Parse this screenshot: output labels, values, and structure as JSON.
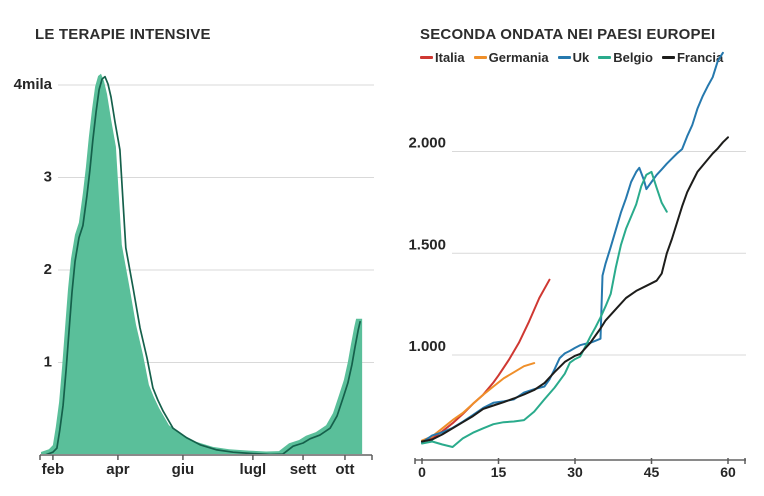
{
  "palette": {
    "background": "#ffffff",
    "title_text": "#2d2d2d",
    "tick_text": "#262626",
    "gridline": "#d9d9d9",
    "axis_line": "#8a8a8a",
    "tick_mark": "#5a5a5a"
  },
  "chart_data": [
    {
      "id": "terapie-intensive",
      "type": "area",
      "title": "LE TERAPIE INTENSIVE",
      "fill_color": "#5abf9a",
      "line_color": "#15604b",
      "ylim": [
        0,
        4400
      ],
      "y_ticks": [
        {
          "value": 4000,
          "label": "4mila"
        },
        {
          "value": 3000,
          "label": "3"
        },
        {
          "value": 2000,
          "label": "2"
        },
        {
          "value": 1000,
          "label": "1"
        }
      ],
      "x_ticks": [
        {
          "pos": 0.027,
          "label": "feb"
        },
        {
          "pos": 0.224,
          "label": "apr"
        },
        {
          "pos": 0.421,
          "label": "giu"
        },
        {
          "pos": 0.633,
          "label": "lugl"
        },
        {
          "pos": 0.785,
          "label": "sett"
        },
        {
          "pos": 0.912,
          "label": "ott"
        }
      ],
      "points": [
        [
          0.003,
          0
        ],
        [
          0.027,
          30
        ],
        [
          0.039,
          75
        ],
        [
          0.048,
          270
        ],
        [
          0.058,
          540
        ],
        [
          0.067,
          920
        ],
        [
          0.076,
          1350
        ],
        [
          0.085,
          1760
        ],
        [
          0.094,
          2090
        ],
        [
          0.106,
          2350
        ],
        [
          0.118,
          2480
        ],
        [
          0.13,
          2800
        ],
        [
          0.139,
          3080
        ],
        [
          0.148,
          3400
        ],
        [
          0.158,
          3710
        ],
        [
          0.167,
          3950
        ],
        [
          0.176,
          4065
        ],
        [
          0.185,
          4090
        ],
        [
          0.194,
          4010
        ],
        [
          0.203,
          3870
        ],
        [
          0.215,
          3600
        ],
        [
          0.23,
          3300
        ],
        [
          0.239,
          2760
        ],
        [
          0.248,
          2240
        ],
        [
          0.27,
          1805
        ],
        [
          0.291,
          1375
        ],
        [
          0.312,
          1050
        ],
        [
          0.33,
          725
        ],
        [
          0.345,
          595
        ],
        [
          0.361,
          475
        ],
        [
          0.391,
          290
        ],
        [
          0.433,
          185
        ],
        [
          0.473,
          110
        ],
        [
          0.524,
          55
        ],
        [
          0.573,
          30
        ],
        [
          0.633,
          15
        ],
        [
          0.685,
          5
        ],
        [
          0.724,
          10
        ],
        [
          0.755,
          95
        ],
        [
          0.785,
          130
        ],
        [
          0.806,
          175
        ],
        [
          0.836,
          215
        ],
        [
          0.867,
          290
        ],
        [
          0.888,
          420
        ],
        [
          0.906,
          615
        ],
        [
          0.921,
          780
        ],
        [
          0.933,
          975
        ],
        [
          0.942,
          1160
        ],
        [
          0.952,
          1350
        ],
        [
          0.958,
          1440
        ]
      ]
    },
    {
      "id": "seconda-ondata",
      "type": "line",
      "title": "SECONDA ONDATA NEI PAESI EUROPEI",
      "xlim": [
        0,
        60
      ],
      "x_ticks": [
        0,
        15,
        30,
        45,
        60
      ],
      "y_ticks": [
        {
          "value": 2000,
          "label": "2.000"
        },
        {
          "value": 1500,
          "label": "1.500"
        },
        {
          "value": 1000,
          "label": "1.000"
        }
      ],
      "series": [
        {
          "name": "Italia",
          "color": "#cf3832",
          "points": [
            [
              0,
              575
            ],
            [
              2,
              590
            ],
            [
              4,
              625
            ],
            [
              6,
              665
            ],
            [
              8,
              710
            ],
            [
              10,
              760
            ],
            [
              12,
              805
            ],
            [
              14,
              865
            ],
            [
              15,
              900
            ],
            [
              17,
              975
            ],
            [
              19,
              1060
            ],
            [
              21,
              1165
            ],
            [
              23,
              1280
            ],
            [
              25,
              1370
            ]
          ]
        },
        {
          "name": "Germania",
          "color": "#ef8f2a",
          "points": [
            [
              0,
              580
            ],
            [
              2,
              600
            ],
            [
              4,
              640
            ],
            [
              6,
              680
            ],
            [
              8,
              715
            ],
            [
              10,
              760
            ],
            [
              12,
              805
            ],
            [
              14,
              845
            ],
            [
              16,
              885
            ],
            [
              18,
              915
            ],
            [
              20,
              945
            ],
            [
              22,
              960
            ]
          ]
        },
        {
          "name": "Uk",
          "color": "#2679ae",
          "points": [
            [
              0,
              570
            ],
            [
              2,
              605
            ],
            [
              4,
              620
            ],
            [
              6,
              642
            ],
            [
              8,
              672
            ],
            [
              10,
              705
            ],
            [
              12,
              740
            ],
            [
              14,
              765
            ],
            [
              16,
              772
            ],
            [
              18,
              782
            ],
            [
              20,
              815
            ],
            [
              22,
              832
            ],
            [
              24,
              845
            ],
            [
              25,
              880
            ],
            [
              26,
              930
            ],
            [
              27,
              985
            ],
            [
              28,
              1008
            ],
            [
              29,
              1020
            ],
            [
              30,
              1035
            ],
            [
              31,
              1048
            ],
            [
              32,
              1055
            ],
            [
              33,
              1060
            ],
            [
              34,
              1070
            ],
            [
              35,
              1080
            ],
            [
              35.4,
              1390
            ],
            [
              36,
              1450
            ],
            [
              37,
              1530
            ],
            [
              38,
              1615
            ],
            [
              39,
              1700
            ],
            [
              40,
              1770
            ],
            [
              41,
              1850
            ],
            [
              42,
              1900
            ],
            [
              42.6,
              1920
            ],
            [
              43.5,
              1860
            ],
            [
              44,
              1815
            ],
            [
              45,
              1850
            ],
            [
              46,
              1885
            ],
            [
              47,
              1912
            ],
            [
              48,
              1940
            ],
            [
              49,
              1965
            ],
            [
              50,
              1990
            ],
            [
              51,
              2012
            ],
            [
              52,
              2075
            ],
            [
              53,
              2130
            ],
            [
              54,
              2210
            ],
            [
              55,
              2270
            ],
            [
              56,
              2320
            ],
            [
              57,
              2365
            ],
            [
              58,
              2445
            ],
            [
              59,
              2485
            ]
          ]
        },
        {
          "name": "Belgio",
          "color": "#2aab8c",
          "points": [
            [
              0,
              565
            ],
            [
              2,
              575
            ],
            [
              4,
              560
            ],
            [
              6,
              548
            ],
            [
              8,
              590
            ],
            [
              10,
              618
            ],
            [
              12,
              640
            ],
            [
              14,
              660
            ],
            [
              16,
              670
            ],
            [
              18,
              673
            ],
            [
              20,
              680
            ],
            [
              22,
              722
            ],
            [
              24,
              782
            ],
            [
              26,
              840
            ],
            [
              28,
              908
            ],
            [
              29,
              962
            ],
            [
              30,
              980
            ],
            [
              31,
              992
            ],
            [
              32,
              1040
            ],
            [
              33,
              1090
            ],
            [
              34,
              1135
            ],
            [
              35,
              1185
            ],
            [
              36,
              1240
            ],
            [
              37,
              1300
            ],
            [
              38,
              1430
            ],
            [
              39,
              1540
            ],
            [
              40,
              1620
            ],
            [
              41,
              1680
            ],
            [
              42,
              1740
            ],
            [
              43,
              1830
            ],
            [
              44,
              1886
            ],
            [
              45,
              1900
            ],
            [
              46,
              1822
            ],
            [
              47,
              1748
            ],
            [
              48,
              1704
            ]
          ]
        },
        {
          "name": "Francia",
          "color": "#1d1d1b",
          "points": [
            [
              0,
              575
            ],
            [
              2,
              585
            ],
            [
              4,
              610
            ],
            [
              6,
              640
            ],
            [
              8,
              670
            ],
            [
              10,
              700
            ],
            [
              12,
              735
            ],
            [
              14,
              752
            ],
            [
              16,
              768
            ],
            [
              18,
              786
            ],
            [
              20,
              806
            ],
            [
              22,
              828
            ],
            [
              24,
              862
            ],
            [
              26,
              916
            ],
            [
              28,
              966
            ],
            [
              30,
              996
            ],
            [
              31,
              1005
            ],
            [
              33,
              1060
            ],
            [
              35,
              1130
            ],
            [
              36,
              1170
            ],
            [
              38,
              1225
            ],
            [
              40,
              1280
            ],
            [
              42,
              1315
            ],
            [
              44,
              1340
            ],
            [
              46,
              1365
            ],
            [
              47,
              1400
            ],
            [
              48,
              1500
            ],
            [
              49,
              1570
            ],
            [
              50,
              1650
            ],
            [
              51,
              1730
            ],
            [
              52,
              1800
            ],
            [
              53,
              1850
            ],
            [
              54,
              1900
            ],
            [
              55,
              1930
            ],
            [
              56,
              1960
            ],
            [
              57,
              1990
            ],
            [
              58,
              2015
            ],
            [
              59,
              2045
            ],
            [
              60,
              2070
            ]
          ]
        }
      ]
    }
  ]
}
